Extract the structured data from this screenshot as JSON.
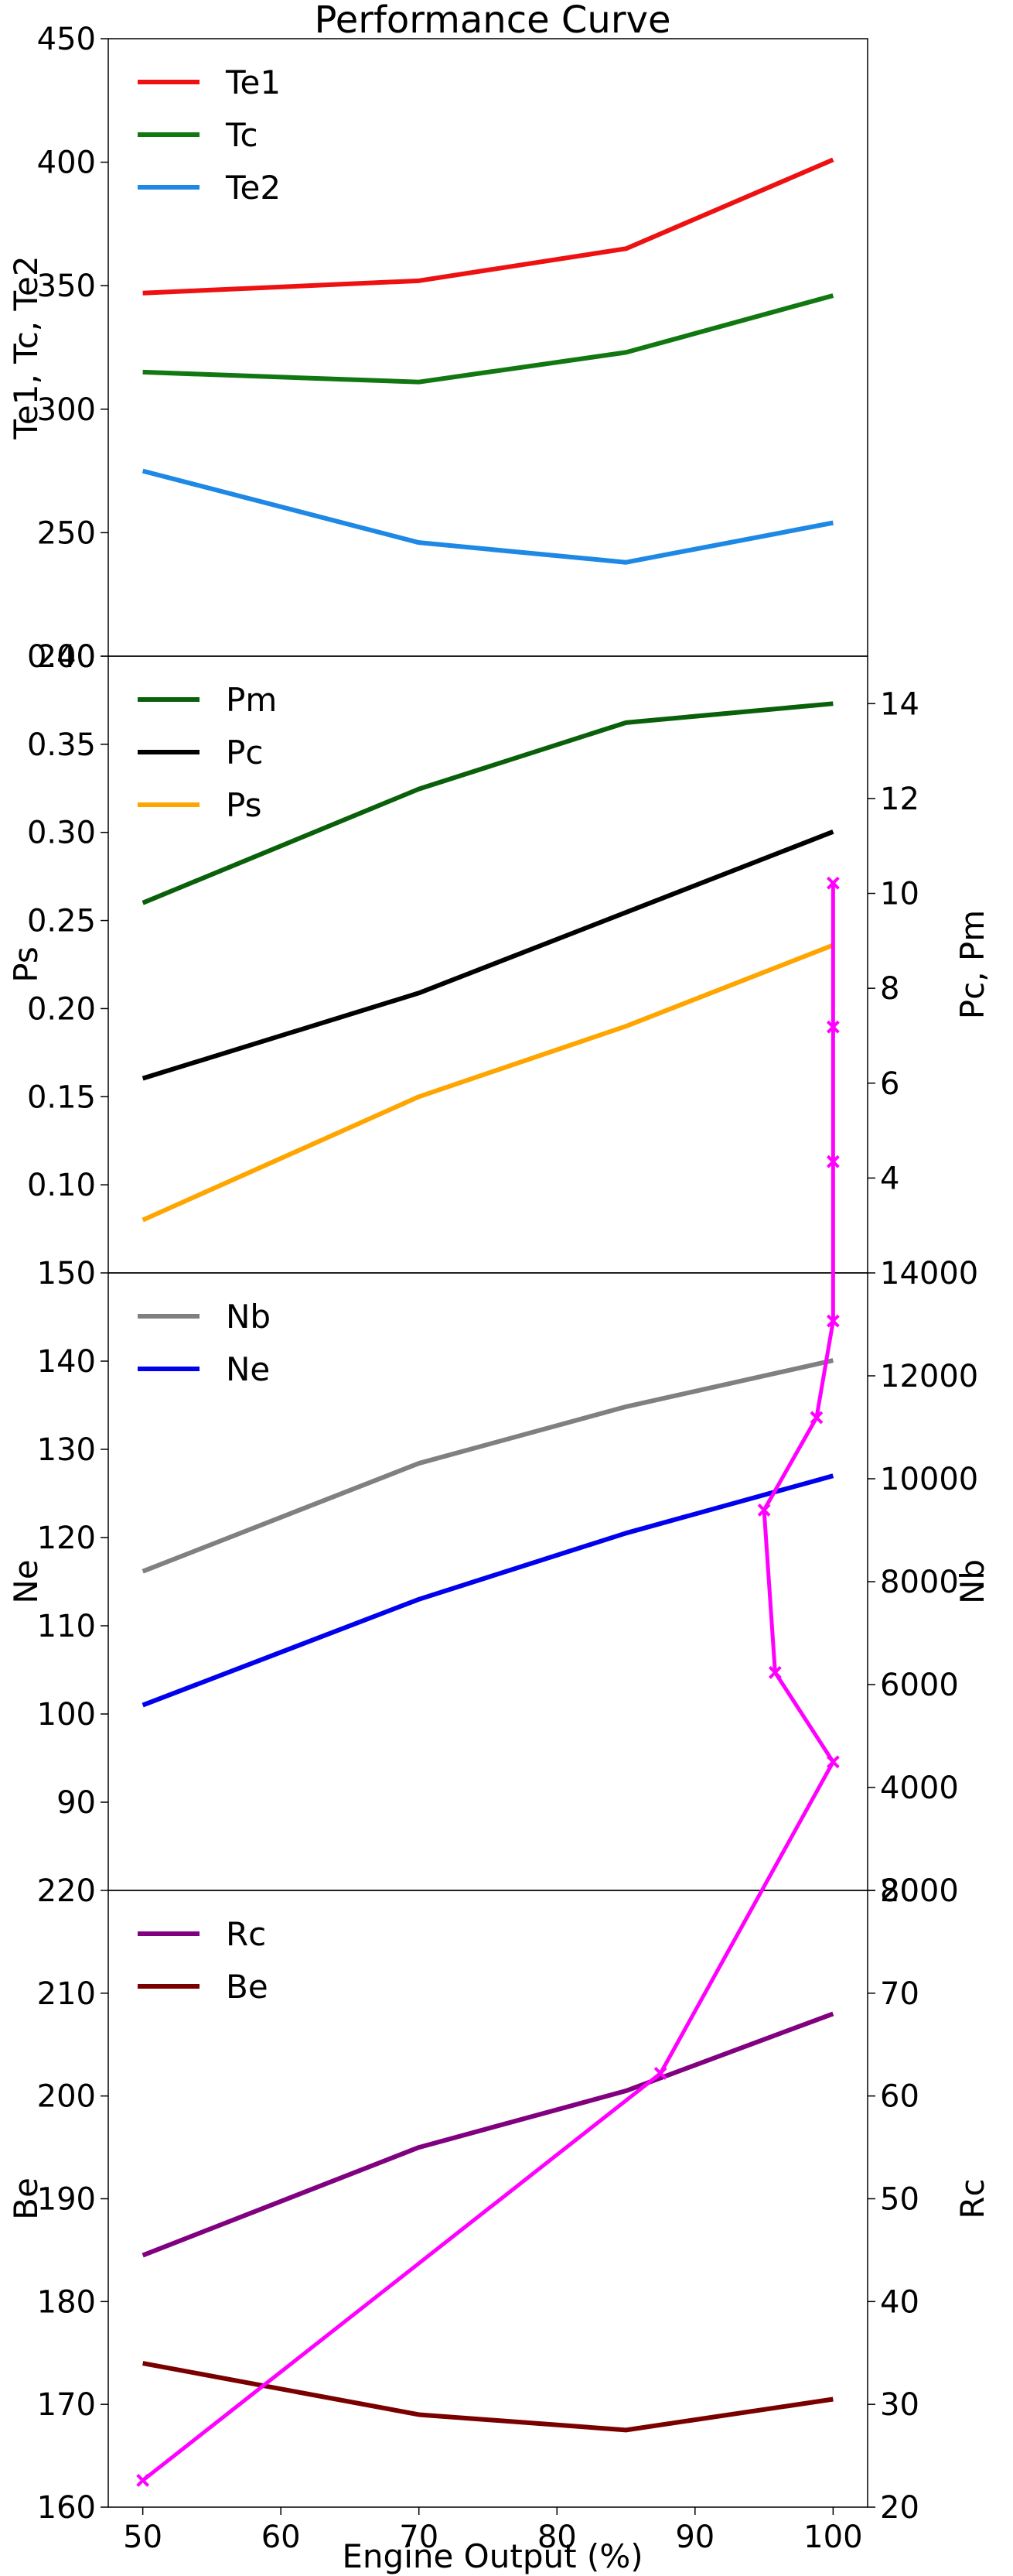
{
  "chart_data": {
    "type": "line",
    "title": "Performance Curve",
    "xlabel": "Engine Output (%)",
    "x": [
      50,
      70,
      85,
      100
    ],
    "xlim": [
      47.5,
      102.5
    ],
    "xticks": [
      50,
      60,
      70,
      80,
      90,
      100
    ],
    "panels": [
      {
        "id": "temperature",
        "left_axis": {
          "label": "Te1, Tc, Te2",
          "ylim": [
            200,
            450
          ],
          "ticks": [
            200,
            250,
            300,
            350,
            400,
            450
          ]
        },
        "series": [
          {
            "name": "Te1",
            "axis": "left",
            "color": "#ee1111",
            "values": [
              347,
              352,
              365,
              401
            ]
          },
          {
            "name": "Tc",
            "axis": "left",
            "color": "#117711",
            "values": [
              315,
              311,
              323,
              346
            ]
          },
          {
            "name": "Te2",
            "axis": "left",
            "color": "#1e88e5",
            "values": [
              275,
              246,
              238,
              254
            ]
          }
        ],
        "legend": "top-left"
      },
      {
        "id": "pressure",
        "left_axis": {
          "label": "Ps",
          "ylim": [
            0.05,
            0.4
          ],
          "ticks": [
            0.1,
            0.15,
            0.2,
            0.25,
            0.3,
            0.35,
            0.4
          ]
        },
        "right_axis": {
          "label": "Pc, Pm",
          "ylim": [
            2,
            15
          ],
          "ticks": [
            4,
            6,
            8,
            10,
            12,
            14
          ]
        },
        "series": [
          {
            "name": "Pm",
            "axis": "right",
            "color": "#0a600a",
            "values": [
              9.8,
              12.2,
              13.6,
              14.0
            ]
          },
          {
            "name": "Pc",
            "axis": "right",
            "color": "#000000",
            "values": [
              6.1,
              7.9,
              9.6,
              11.3
            ]
          },
          {
            "name": "Ps",
            "axis": "left",
            "color": "#ffa500",
            "values": [
              0.08,
              0.15,
              0.19,
              0.236
            ]
          }
        ],
        "legend": "top-left"
      },
      {
        "id": "speed",
        "left_axis": {
          "label": "Ne",
          "ylim": [
            80,
            150
          ],
          "ticks": [
            90,
            100,
            110,
            120,
            130,
            140,
            150
          ]
        },
        "right_axis": {
          "label": "Nb",
          "ylim": [
            2000,
            14000
          ],
          "ticks": [
            2000,
            4000,
            6000,
            8000,
            10000,
            12000,
            14000
          ]
        },
        "series": [
          {
            "name": "Nb",
            "axis": "right",
            "color": "#808080",
            "values": [
              8200,
              10300,
              11400,
              12300
            ]
          },
          {
            "name": "Ne",
            "axis": "left",
            "color": "#0000ee",
            "values": [
              101,
              113,
              120.5,
              127
            ]
          }
        ],
        "legend": "top-left"
      },
      {
        "id": "consumption",
        "left_axis": {
          "label": "Be",
          "ylim": [
            160,
            220
          ],
          "ticks": [
            160,
            170,
            180,
            190,
            200,
            210,
            220
          ]
        },
        "right_axis": {
          "label": "Rc",
          "ylim": [
            20,
            80
          ],
          "ticks": [
            20,
            30,
            40,
            50,
            60,
            70,
            80
          ]
        },
        "series": [
          {
            "name": "Rc",
            "axis": "right",
            "color": "#800080",
            "values": [
              44.5,
              55,
              60.5,
              68
            ]
          },
          {
            "name": "Be",
            "axis": "left",
            "color": "#7a0000",
            "values": [
              174,
              169,
              167.5,
              170.5
            ]
          }
        ],
        "legend": "top-left"
      }
    ],
    "overlay": {
      "color": "#ff00ff",
      "marker": "x",
      "description_in_left_axis_units_of_bottom_panel": true,
      "points": [
        {
          "x": 50,
          "y": 162.6
        },
        {
          "x": 87.5,
          "y": 202.2
        },
        {
          "x": 100,
          "y": 232.5
        },
        {
          "x": 95.8,
          "y": 241.2
        },
        {
          "x": 95,
          "y": 257.0
        },
        {
          "x": 98.8,
          "y": 266.0
        },
        {
          "x": 100,
          "y": 275.4
        },
        {
          "x": 100,
          "y": 290.9
        },
        {
          "x": 100,
          "y": 304.0
        },
        {
          "x": 100,
          "y": 318.0
        }
      ]
    }
  }
}
